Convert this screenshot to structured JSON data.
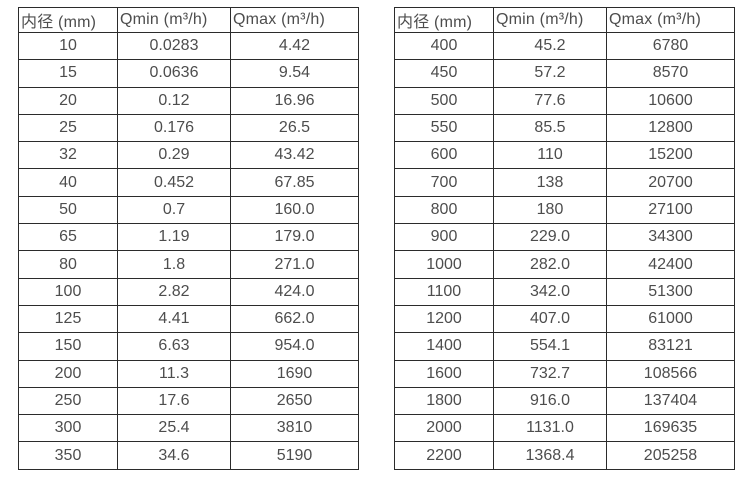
{
  "colors": {
    "background": "#ffffff",
    "border": "#2b2b2b",
    "text": "#4d4d4d"
  },
  "tables": [
    {
      "name": "flow-table-small-diameters",
      "headers": [
        "内径 (mm)",
        "Qmin (m³/h)",
        "Qmax (m³/h)"
      ],
      "rows": [
        [
          "10",
          "0.0283",
          "4.42"
        ],
        [
          "15",
          "0.0636",
          "9.54"
        ],
        [
          "20",
          "0.12",
          "16.96"
        ],
        [
          "25",
          "0.176",
          "26.5"
        ],
        [
          "32",
          "0.29",
          "43.42"
        ],
        [
          "40",
          "0.452",
          "67.85"
        ],
        [
          "50",
          "0.7",
          "160.0"
        ],
        [
          "65",
          "1.19",
          "179.0"
        ],
        [
          "80",
          "1.8",
          "271.0"
        ],
        [
          "100",
          "2.82",
          "424.0"
        ],
        [
          "125",
          "4.41",
          "662.0"
        ],
        [
          "150",
          "6.63",
          "954.0"
        ],
        [
          "200",
          "11.3",
          "1690"
        ],
        [
          "250",
          "17.6",
          "2650"
        ],
        [
          "300",
          "25.4",
          "3810"
        ],
        [
          "350",
          "34.6",
          "5190"
        ]
      ]
    },
    {
      "name": "flow-table-large-diameters",
      "headers": [
        "内径 (mm)",
        "Qmin (m³/h)",
        "Qmax (m³/h)"
      ],
      "rows": [
        [
          "400",
          "45.2",
          "6780"
        ],
        [
          "450",
          "57.2",
          "8570"
        ],
        [
          "500",
          "77.6",
          "10600"
        ],
        [
          "550",
          "85.5",
          "12800"
        ],
        [
          "600",
          "110",
          "15200"
        ],
        [
          "700",
          "138",
          "20700"
        ],
        [
          "800",
          "180",
          "27100"
        ],
        [
          "900",
          "229.0",
          "34300"
        ],
        [
          "1000",
          "282.0",
          "42400"
        ],
        [
          "1100",
          "342.0",
          "51300"
        ],
        [
          "1200",
          "407.0",
          "61000"
        ],
        [
          "1400",
          "554.1",
          "83121"
        ],
        [
          "1600",
          "732.7",
          "108566"
        ],
        [
          "1800",
          "916.0",
          "137404"
        ],
        [
          "2000",
          "1131.0",
          "169635"
        ],
        [
          "2200",
          "1368.4",
          "205258"
        ]
      ]
    }
  ]
}
